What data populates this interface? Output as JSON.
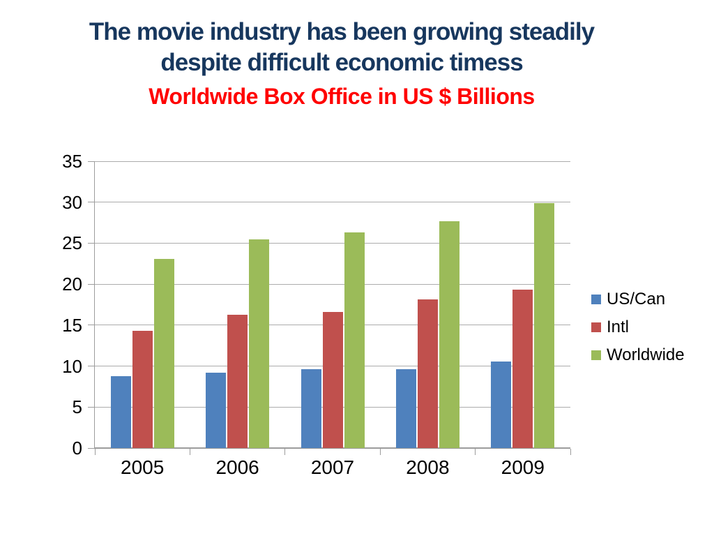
{
  "slide": {
    "title_line1": "The movie industry has been growing steadily",
    "title_line2": "despite difficult economic timess",
    "subtitle": "Worldwide Box Office in US $ Billions",
    "title_color": "#17375E",
    "subtitle_color": "#FF0000"
  },
  "chart_data": {
    "type": "bar",
    "title": "Worldwide Box Office in US $ Billions",
    "categories": [
      "2005",
      "2006",
      "2007",
      "2008",
      "2009"
    ],
    "series": [
      {
        "name": "US/Can",
        "color": "#4F81BD",
        "values": [
          8.8,
          9.2,
          9.6,
          9.6,
          10.6
        ]
      },
      {
        "name": "Intl",
        "color": "#C0504D",
        "values": [
          14.3,
          16.3,
          16.6,
          18.1,
          19.3
        ]
      },
      {
        "name": "Worldwide",
        "color": "#9BBB59",
        "values": [
          23.1,
          25.5,
          26.3,
          27.7,
          29.9
        ]
      }
    ],
    "ylim": [
      0,
      35
    ],
    "yticks": [
      0,
      5,
      10,
      15,
      20,
      25,
      30,
      35
    ],
    "xlabel": "",
    "ylabel": "",
    "grid": true,
    "legend_position": "right",
    "axis_color": "#9C9C9C",
    "gridline_color": "#ACACAC"
  }
}
